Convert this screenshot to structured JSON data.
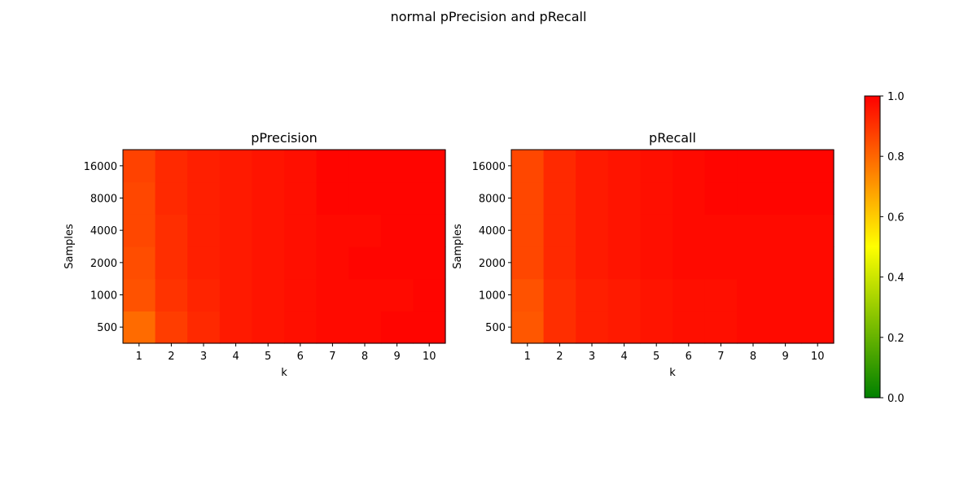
{
  "chart_data": {
    "type": "heatmap",
    "suptitle": "normal pPrecision and pRecall",
    "colormap": {
      "stops": [
        {
          "value": 0.0,
          "color": "#008000"
        },
        {
          "value": 0.5,
          "color": "#ffff00"
        },
        {
          "value": 1.0,
          "color": "#ff0000"
        }
      ]
    },
    "colorbar": {
      "range": [
        0.0,
        1.0
      ],
      "ticks": [
        0.0,
        0.2,
        0.4,
        0.6,
        0.8,
        1.0
      ],
      "tick_labels": [
        "0.0",
        "0.2",
        "0.4",
        "0.6",
        "0.8",
        "1.0"
      ]
    },
    "panels": [
      {
        "title": "pPrecision",
        "xlabel": "k",
        "ylabel": "Samples",
        "x_categories": [
          "1",
          "2",
          "3",
          "4",
          "5",
          "6",
          "7",
          "8",
          "9",
          "10"
        ],
        "y_categories": [
          "500",
          "1000",
          "2000",
          "4000",
          "8000",
          "16000"
        ],
        "values": [
          [
            0.79,
            0.88,
            0.92,
            0.95,
            0.96,
            0.97,
            0.98,
            0.98,
            0.99,
            0.99
          ],
          [
            0.84,
            0.9,
            0.93,
            0.95,
            0.96,
            0.97,
            0.98,
            0.98,
            0.98,
            0.99
          ],
          [
            0.85,
            0.91,
            0.94,
            0.95,
            0.96,
            0.97,
            0.98,
            0.99,
            0.99,
            0.99
          ],
          [
            0.86,
            0.91,
            0.94,
            0.95,
            0.96,
            0.97,
            0.98,
            0.98,
            0.99,
            0.99
          ],
          [
            0.86,
            0.92,
            0.94,
            0.95,
            0.96,
            0.97,
            0.99,
            0.99,
            0.99,
            0.99
          ],
          [
            0.87,
            0.92,
            0.94,
            0.95,
            0.96,
            0.97,
            0.99,
            0.99,
            0.99,
            0.99
          ]
        ]
      },
      {
        "title": "pRecall",
        "xlabel": "k",
        "ylabel": "Samples",
        "x_categories": [
          "1",
          "2",
          "3",
          "4",
          "5",
          "6",
          "7",
          "8",
          "9",
          "10"
        ],
        "y_categories": [
          "500",
          "1000",
          "2000",
          "4000",
          "8000",
          "16000"
        ],
        "values": [
          [
            0.83,
            0.91,
            0.94,
            0.95,
            0.96,
            0.97,
            0.97,
            0.98,
            0.98,
            0.98
          ],
          [
            0.84,
            0.91,
            0.94,
            0.95,
            0.96,
            0.97,
            0.97,
            0.98,
            0.98,
            0.98
          ],
          [
            0.86,
            0.92,
            0.95,
            0.96,
            0.97,
            0.98,
            0.98,
            0.98,
            0.98,
            0.98
          ],
          [
            0.86,
            0.92,
            0.95,
            0.96,
            0.97,
            0.98,
            0.98,
            0.98,
            0.98,
            0.98
          ],
          [
            0.86,
            0.92,
            0.95,
            0.96,
            0.97,
            0.98,
            0.99,
            0.99,
            0.99,
            0.99
          ],
          [
            0.86,
            0.92,
            0.95,
            0.96,
            0.97,
            0.98,
            0.99,
            0.99,
            0.99,
            0.99
          ]
        ]
      }
    ]
  }
}
